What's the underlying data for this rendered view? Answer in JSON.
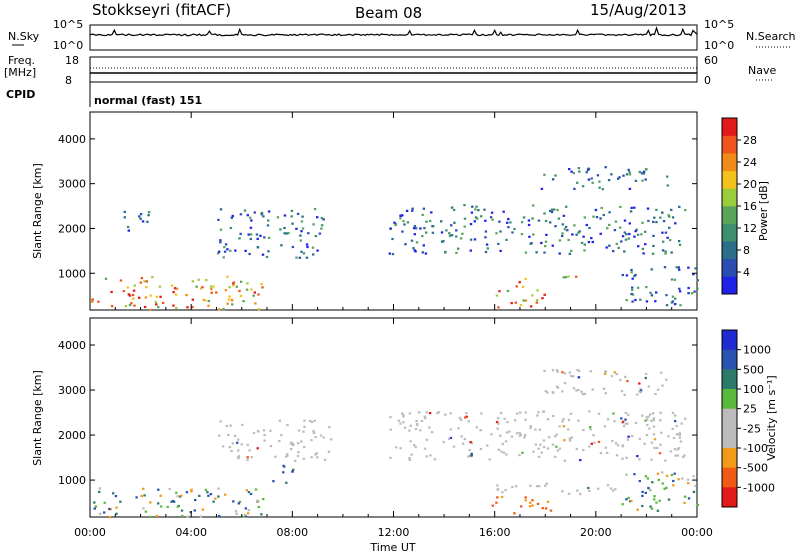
{
  "header": {
    "station": "Stokkseyri (fitACF)",
    "beam": "Beam 08",
    "date": "15/Aug/2013"
  },
  "strip_panels": {
    "nsky_label": "N.Sky",
    "nsearch_label": "N.Search",
    "left_ticks_top": [
      "10^5",
      "10^0"
    ],
    "right_ticks_top": [
      "10^5",
      "10^0"
    ],
    "freq_label_1": "Freq.",
    "freq_label_2": "[MHz]",
    "freq_ticks": [
      "18",
      "8"
    ],
    "nave_label": "Nave",
    "nave_ticks": [
      "60",
      "0"
    ],
    "cpid_label": "CPID",
    "cpid_value": "normal (fast) 151"
  },
  "colors": {
    "power": [
      "#1f22e6",
      "#2b4db2",
      "#2a6e8a",
      "#3d8f6e",
      "#5aa35a",
      "#9bcc3c",
      "#f2c21a",
      "#f28a1a",
      "#f0541c",
      "#e21a1a"
    ],
    "velocity": [
      "#e21a1a",
      "#f05a14",
      "#f29a1a",
      "#bcbcbc",
      "#bcbcbc",
      "#5ab83c",
      "#2e7a6a",
      "#2a52b0",
      "#1f2ad0"
    ],
    "ground": "#bcbcbc"
  },
  "chart_data": [
    {
      "type": "heatmap",
      "panel": "power",
      "ylabel": "Slant Range [km]",
      "xlabel": "",
      "ylim": [
        180,
        4600
      ],
      "xlim": [
        0,
        24
      ],
      "x_ticks": [
        "00:00",
        "04:00",
        "08:00",
        "12:00",
        "16:00",
        "20:00",
        "00:00"
      ],
      "y_ticks": [
        1000,
        2000,
        3000,
        4000
      ],
      "colorbar_label": "Power [dB]",
      "colorbar_ticks": [
        4,
        8,
        12,
        16,
        20,
        24,
        28
      ],
      "bands": [
        {
          "t0": 0.0,
          "t1": 6.8,
          "r0": 200,
          "r1": 950,
          "level": "high"
        },
        {
          "t0": 1.2,
          "t1": 2.3,
          "r0": 1950,
          "r1": 2500,
          "level": "mid"
        },
        {
          "t0": 5.0,
          "t1": 9.2,
          "r0": 1350,
          "r1": 2500,
          "level": "mid"
        },
        {
          "t0": 11.8,
          "t1": 23.6,
          "r0": 1450,
          "r1": 2550,
          "level": "mid"
        },
        {
          "t0": 15.8,
          "t1": 18.0,
          "r0": 250,
          "r1": 650,
          "level": "high"
        },
        {
          "t0": 16.6,
          "t1": 17.8,
          "r0": 700,
          "r1": 900,
          "level": "high"
        },
        {
          "t0": 18.6,
          "t1": 20.0,
          "r0": 820,
          "r1": 960,
          "level": "high"
        },
        {
          "t0": 17.8,
          "t1": 22.8,
          "r0": 2900,
          "r1": 3400,
          "level": "mid"
        },
        {
          "t0": 21.0,
          "t1": 24.0,
          "r0": 300,
          "r1": 1200,
          "level": "mid"
        }
      ]
    },
    {
      "type": "heatmap",
      "panel": "velocity",
      "ylabel": "Slant Range [km]",
      "xlabel": "Time UT",
      "ylim": [
        180,
        4600
      ],
      "xlim": [
        0,
        24
      ],
      "x_ticks": [
        "00:00",
        "04:00",
        "08:00",
        "12:00",
        "16:00",
        "20:00",
        "00:00"
      ],
      "y_ticks": [
        1000,
        2000,
        3000,
        4000
      ],
      "colorbar_label": "Velocity [m s⁻¹]",
      "colorbar_ticks": [
        1000,
        500,
        100,
        25,
        -25,
        -100,
        -500,
        -1000
      ],
      "bands": [
        {
          "t0": 0.0,
          "t1": 7.0,
          "r0": 200,
          "r1": 850,
          "level": "mixed"
        },
        {
          "t0": 5.0,
          "t1": 9.5,
          "r0": 1450,
          "r1": 2350,
          "level": "ground"
        },
        {
          "t0": 7.2,
          "t1": 8.0,
          "r0": 900,
          "r1": 1350,
          "level": "pos"
        },
        {
          "t0": 11.8,
          "t1": 23.6,
          "r0": 1450,
          "r1": 2550,
          "level": "ground"
        },
        {
          "t0": 15.8,
          "t1": 18.2,
          "r0": 250,
          "r1": 650,
          "level": "neg"
        },
        {
          "t0": 16.0,
          "t1": 21.0,
          "r0": 700,
          "r1": 950,
          "level": "ground"
        },
        {
          "t0": 17.8,
          "t1": 22.8,
          "r0": 2900,
          "r1": 3500,
          "level": "ground"
        },
        {
          "t0": 21.0,
          "t1": 24.0,
          "r0": 300,
          "r1": 1200,
          "level": "mixed"
        }
      ]
    }
  ]
}
